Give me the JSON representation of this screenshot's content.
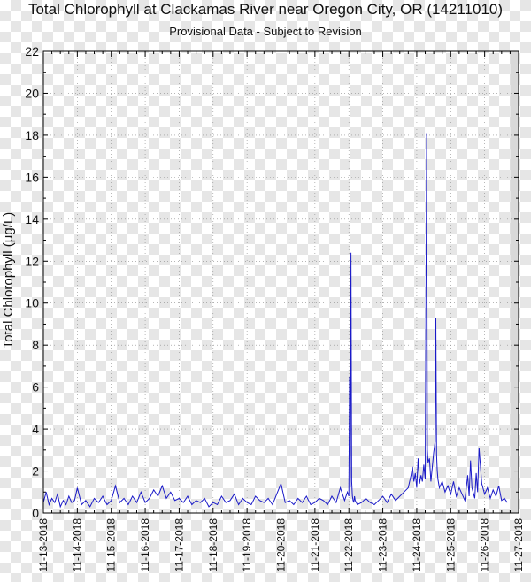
{
  "chart_data": {
    "type": "line",
    "title": "Total Chlorophyll at Clackamas River near Oregon City, OR (14211010)",
    "subtitle": "Provisional Data - Subject to Revision",
    "ylabel": "Total Chlorophyll (μg/L)",
    "xlabel": "",
    "ylim": [
      0,
      22
    ],
    "yticks": [
      0,
      2,
      4,
      6,
      8,
      10,
      12,
      14,
      16,
      18,
      20,
      22
    ],
    "xlim": [
      "2018-11-13",
      "2018-11-27"
    ],
    "xticks": [
      "11-13-2018",
      "11-14-2018",
      "11-15-2018",
      "11-16-2018",
      "11-17-2018",
      "11-18-2018",
      "11-19-2018",
      "11-20-2018",
      "11-21-2018",
      "11-22-2018",
      "11-23-2018",
      "11-24-2018",
      "11-25-2018",
      "11-26-2018",
      "11-27-2018"
    ],
    "grid": true,
    "shaded_region": [
      "2018-11-26 18:00",
      "2018-11-27 00:00"
    ],
    "colors": {
      "line": "#1a1ac8",
      "shade": "#d9d9d9",
      "grid": "#8a8a8a"
    },
    "series": [
      {
        "x": [
          "2018-11-13 00:00",
          "2018-11-13 02:00",
          "2018-11-13 04:00",
          "2018-11-13 06:00",
          "2018-11-13 08:00",
          "2018-11-13 10:00",
          "2018-11-13 12:00",
          "2018-11-13 14:00",
          "2018-11-13 16:00",
          "2018-11-13 18:00",
          "2018-11-13 20:00",
          "2018-11-13 22:00",
          "2018-11-14 00:00",
          "2018-11-14 03:00",
          "2018-11-14 06:00",
          "2018-11-14 09:00",
          "2018-11-14 12:00",
          "2018-11-14 15:00",
          "2018-11-14 18:00",
          "2018-11-14 21:00",
          "2018-11-15 00:00",
          "2018-11-15 03:00",
          "2018-11-15 06:00",
          "2018-11-15 09:00",
          "2018-11-15 12:00",
          "2018-11-15 15:00",
          "2018-11-15 18:00",
          "2018-11-15 21:00",
          "2018-11-16 00:00",
          "2018-11-16 03:00",
          "2018-11-16 06:00",
          "2018-11-16 09:00",
          "2018-11-16 12:00",
          "2018-11-16 15:00",
          "2018-11-16 18:00",
          "2018-11-16 21:00",
          "2018-11-17 00:00",
          "2018-11-17 03:00",
          "2018-11-17 06:00",
          "2018-11-17 09:00",
          "2018-11-17 12:00",
          "2018-11-17 15:00",
          "2018-11-17 18:00",
          "2018-11-17 21:00",
          "2018-11-18 00:00",
          "2018-11-18 03:00",
          "2018-11-18 06:00",
          "2018-11-18 09:00",
          "2018-11-18 12:00",
          "2018-11-18 15:00",
          "2018-11-18 18:00",
          "2018-11-18 21:00",
          "2018-11-19 00:00",
          "2018-11-19 03:00",
          "2018-11-19 06:00",
          "2018-11-19 09:00",
          "2018-11-19 12:00",
          "2018-11-19 15:00",
          "2018-11-19 18:00",
          "2018-11-19 21:00",
          "2018-11-20 00:00",
          "2018-11-20 03:00",
          "2018-11-20 06:00",
          "2018-11-20 09:00",
          "2018-11-20 12:00",
          "2018-11-20 15:00",
          "2018-11-20 18:00",
          "2018-11-20 21:00",
          "2018-11-21 00:00",
          "2018-11-21 03:00",
          "2018-11-21 06:00",
          "2018-11-21 09:00",
          "2018-11-21 12:00",
          "2018-11-21 15:00",
          "2018-11-21 18:00",
          "2018-11-21 21:00",
          "2018-11-21 23:00",
          "2018-11-22 00:00",
          "2018-11-22 00:30",
          "2018-11-22 01:00",
          "2018-11-22 01:30",
          "2018-11-22 02:00",
          "2018-11-22 02:30",
          "2018-11-22 03:00",
          "2018-11-22 03:30",
          "2018-11-22 04:00",
          "2018-11-22 04:30",
          "2018-11-22 06:00",
          "2018-11-22 09:00",
          "2018-11-22 12:00",
          "2018-11-22 15:00",
          "2018-11-22 18:00",
          "2018-11-22 21:00",
          "2018-11-23 00:00",
          "2018-11-23 03:00",
          "2018-11-23 06:00",
          "2018-11-23 09:00",
          "2018-11-23 12:00",
          "2018-11-23 15:00",
          "2018-11-23 18:00",
          "2018-11-23 20:00",
          "2018-11-23 21:00",
          "2018-11-23 22:00",
          "2018-11-23 23:00",
          "2018-11-24 00:00",
          "2018-11-24 01:00",
          "2018-11-24 02:00",
          "2018-11-24 03:00",
          "2018-11-24 04:00",
          "2018-11-24 05:00",
          "2018-11-24 06:00",
          "2018-11-24 06:30",
          "2018-11-24 07:00",
          "2018-11-24 07:30",
          "2018-11-24 08:00",
          "2018-11-24 09:00",
          "2018-11-24 10:00",
          "2018-11-24 11:00",
          "2018-11-24 12:00",
          "2018-11-24 13:00",
          "2018-11-24 13:30",
          "2018-11-24 14:00",
          "2018-11-24 14:30",
          "2018-11-24 15:00",
          "2018-11-24 16:00",
          "2018-11-24 18:00",
          "2018-11-24 20:00",
          "2018-11-24 22:00",
          "2018-11-25 00:00",
          "2018-11-25 02:00",
          "2018-11-25 04:00",
          "2018-11-25 06:00",
          "2018-11-25 08:00",
          "2018-11-25 10:00",
          "2018-11-25 12:00",
          "2018-11-25 13:00",
          "2018-11-25 14:00",
          "2018-11-25 15:00",
          "2018-11-25 17:00",
          "2018-11-25 18:00",
          "2018-11-25 19:00",
          "2018-11-25 20:00",
          "2018-11-25 22:00",
          "2018-11-26 00:00",
          "2018-11-26 02:00",
          "2018-11-26 04:00",
          "2018-11-26 06:00",
          "2018-11-26 08:00",
          "2018-11-26 10:00",
          "2018-11-26 12:00",
          "2018-11-26 14:00",
          "2018-11-26 16:00"
        ],
        "y": [
          0.5,
          1.0,
          0.4,
          0.7,
          0.5,
          0.9,
          0.3,
          0.6,
          0.4,
          0.8,
          0.5,
          0.6,
          1.2,
          0.4,
          0.6,
          0.3,
          0.7,
          0.5,
          0.8,
          0.4,
          0.6,
          1.3,
          0.5,
          0.7,
          0.4,
          0.8,
          0.5,
          1.0,
          0.5,
          0.7,
          1.1,
          0.8,
          1.3,
          0.7,
          1.0,
          0.6,
          0.7,
          0.5,
          0.8,
          0.4,
          0.6,
          0.5,
          0.7,
          0.3,
          0.5,
          0.4,
          0.8,
          0.5,
          0.6,
          0.9,
          0.4,
          0.7,
          0.5,
          0.4,
          0.8,
          0.6,
          0.5,
          0.7,
          0.4,
          0.9,
          1.4,
          0.5,
          0.6,
          0.4,
          0.7,
          0.5,
          0.8,
          0.4,
          0.5,
          0.7,
          0.6,
          0.4,
          0.8,
          0.5,
          1.2,
          0.6,
          1.0,
          0.8,
          6.5,
          1.2,
          12.4,
          1.5,
          0.8,
          0.6,
          0.5,
          0.8,
          0.6,
          0.4,
          0.5,
          0.7,
          0.5,
          0.4,
          0.6,
          0.8,
          0.5,
          0.9,
          0.6,
          0.8,
          1.0,
          1.2,
          1.8,
          2.2,
          1.5,
          1.9,
          1.2,
          2.6,
          1.4,
          1.8,
          1.5,
          2.3,
          1.6,
          10.0,
          18.1,
          3.0,
          2.4,
          2.6,
          1.5,
          2.2,
          2.9,
          3.4,
          9.3,
          2.8,
          2.0,
          1.6,
          1.2,
          1.5,
          1.0,
          1.3,
          0.9,
          1.5,
          0.8,
          1.2,
          0.9,
          0.6,
          1.8,
          0.8,
          2.5,
          1.2,
          0.7,
          1.9,
          1.0,
          3.1,
          1.4,
          0.9,
          1.2,
          0.7,
          1.1,
          0.8,
          1.3,
          0.6,
          0.7,
          0.5
        ]
      }
    ]
  }
}
